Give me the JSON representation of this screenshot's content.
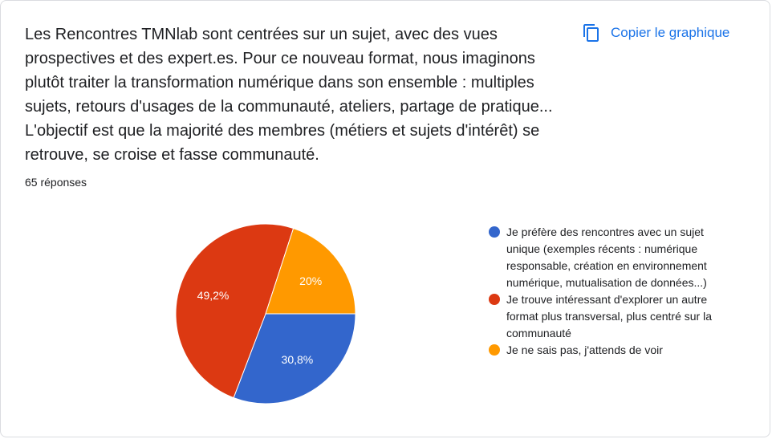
{
  "question": "Les Rencontres TMNlab sont centrées sur un sujet, avec des vues prospectives et des expert.es. Pour ce nouveau format, nous imaginons plutôt traiter la transformation numérique dans son ensemble : multiples sujets, retours d'usages de la communauté, ateliers, partage de pratique... L'objectif est que la majorité des membres (métiers et sujets d'intérêt) se retrouve, se croise et fasse communauté.",
  "responses": "65 réponses",
  "copy_label": "Copier le graphique",
  "copy_icon": "copy-icon",
  "chart_data": {
    "type": "pie",
    "title": "",
    "slices": [
      {
        "name": "Je préfère des rencontres avec un sujet unique (exemples récents : numérique responsable, création en environnement numérique, mutualisation de données...)",
        "value": 30.8,
        "label": "30,8%",
        "color": "#3366cc"
      },
      {
        "name": "Je trouve intéressant d'explorer un autre format plus transversal, plus centré sur la communauté",
        "value": 49.2,
        "label": "49,2%",
        "color": "#dc3912"
      },
      {
        "name": "Je ne sais pas, j'attends de voir",
        "value": 20,
        "label": "20%",
        "color": "#ff9900"
      }
    ],
    "legend_position": "right"
  }
}
